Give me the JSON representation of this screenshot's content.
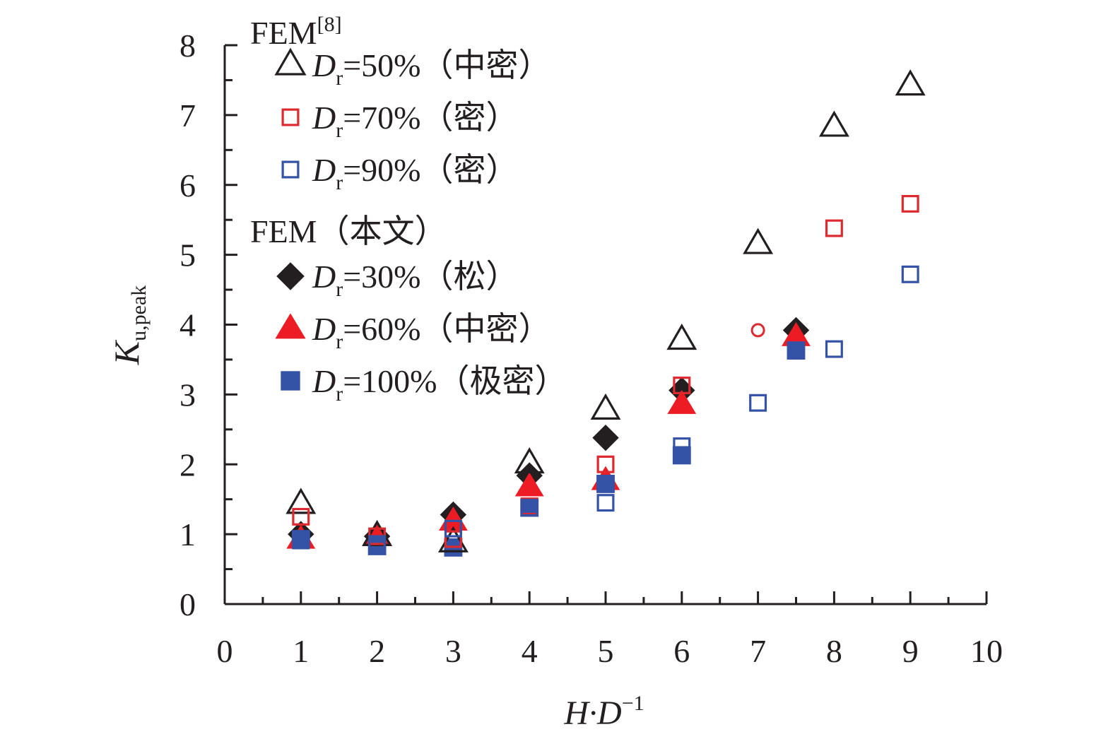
{
  "chart_data": {
    "type": "scatter",
    "title": "",
    "xlabel": "H·D⁻¹",
    "xlabel_parts": {
      "main": "H·D",
      "sup": "−1"
    },
    "ylabel": "K_u,peak",
    "ylabel_parts": {
      "main": "K",
      "sub": "u,peak"
    },
    "xlim": [
      0,
      10
    ],
    "ylim": [
      0,
      8
    ],
    "grid": false,
    "legend_placement": "top-left",
    "x_ticks": [
      "0",
      "1",
      "2",
      "3",
      "4",
      "5",
      "6",
      "7",
      "8",
      "9",
      "10"
    ],
    "y_ticks": [
      "0",
      "1",
      "2",
      "3",
      "4",
      "5",
      "6",
      "7",
      "8"
    ],
    "legend_groups": [
      {
        "title": "FEM",
        "title_sup": "[8]",
        "title_suffix": ""
      },
      {
        "title": "FEM（本文）",
        "title_sup": "",
        "title_suffix": ""
      }
    ],
    "series": [
      {
        "name": "Dr=50%（中密）",
        "label_eq": "=50%（中密）",
        "group": 0,
        "marker": "triangle-open",
        "color": "#231f20",
        "x": [
          1,
          2,
          3,
          4,
          5,
          6,
          7,
          8,
          9
        ],
        "y": [
          1.43,
          0.97,
          0.88,
          2.01,
          2.78,
          3.78,
          5.15,
          6.83,
          7.42
        ]
      },
      {
        "name": "Dr=70%（密）",
        "label_eq": "=70%（密）",
        "group": 0,
        "marker": "square-open",
        "color": "#dc2a30",
        "x": [
          1,
          2,
          3,
          4,
          5,
          6,
          8,
          9
        ],
        "y": [
          1.25,
          0.97,
          0.93,
          1.4,
          2.0,
          3.13,
          5.38,
          5.73
        ],
        "extra_points": [
          {
            "x": 7,
            "y": 3.92,
            "marker": "circle-open"
          }
        ]
      },
      {
        "name": "Dr=90%（密）",
        "label_eq": "=90%（密）",
        "group": 0,
        "marker": "square-open",
        "color": "#3452a6",
        "x": [
          1,
          2,
          3,
          4,
          5,
          6,
          7,
          8,
          9
        ],
        "y": [
          0.91,
          0.86,
          1.08,
          1.38,
          1.45,
          2.26,
          2.88,
          3.65,
          4.72
        ]
      },
      {
        "name": "Dr=30%（松）",
        "label_eq": "=30%（松）",
        "group": 1,
        "marker": "diamond-filled",
        "color": "#231f20",
        "x": [
          1,
          2,
          3,
          4,
          5,
          6,
          7.5
        ],
        "y": [
          1.0,
          0.97,
          1.28,
          1.84,
          2.38,
          3.06,
          3.92
        ]
      },
      {
        "name": "Dr=60%（中密）",
        "label_eq": "=60%（中密）",
        "group": 1,
        "marker": "triangle-filled",
        "color": "#ed1c24",
        "x": [
          1,
          2,
          3,
          4,
          5,
          6,
          7.5
        ],
        "y": [
          0.93,
          0.99,
          1.19,
          1.68,
          1.77,
          2.86,
          3.83
        ]
      },
      {
        "name": "Dr=100%（极密）",
        "label_eq": "=100%（极密）",
        "group": 1,
        "marker": "square-filled",
        "color": "#3452a6",
        "x": [
          1,
          2,
          3,
          4,
          5,
          6,
          7.5
        ],
        "y": [
          0.93,
          0.83,
          0.81,
          1.38,
          1.72,
          2.13,
          3.63
        ]
      }
    ],
    "legend_symbol": {
      "main": "D",
      "sub": "r"
    },
    "axis_color": "#231f20"
  }
}
